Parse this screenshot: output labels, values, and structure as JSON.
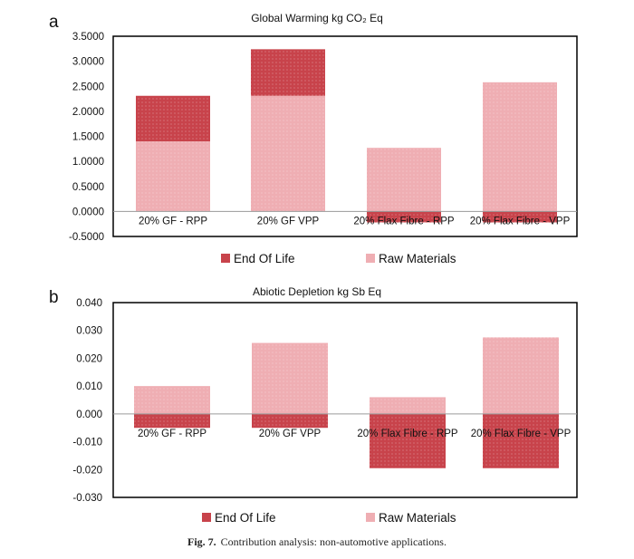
{
  "figure": {
    "caption_label": "Fig. 7.",
    "caption_text": "Contribution analysis: non-automotive applications."
  },
  "colors": {
    "end_of_life": "#c8434b",
    "raw_materials": "#efaeb3"
  },
  "chart_data": [
    {
      "panel": "a",
      "type": "bar",
      "stacked": true,
      "title": "Global Warming  kg CO₂ Eq",
      "categories": [
        "20% GF - RPP",
        "20% GF VPP",
        "20% Flax Fibre - RPP",
        "20% Flax Fibre - VPP"
      ],
      "series": [
        {
          "name": "Raw Materials",
          "values": [
            1.4,
            2.31,
            1.27,
            2.58
          ]
        },
        {
          "name": "End Of Life",
          "values": [
            0.91,
            0.93,
            -0.22,
            -0.22
          ]
        }
      ],
      "yticks": [
        "3.5000",
        "3.0000",
        "2.5000",
        "2.0000",
        "1.5000",
        "1.0000",
        "0.5000",
        "0.0000",
        "-0.5000"
      ],
      "ylim": [
        -0.5,
        3.5
      ],
      "legend": "bottom",
      "grid": false
    },
    {
      "panel": "b",
      "type": "bar",
      "stacked": true,
      "title": "Abiotic Depletion kg Sb Eq",
      "categories": [
        "20% GF - RPP",
        "20% GF VPP",
        "20% Flax Fibre - RPP",
        "20% Flax Fibre - VPP"
      ],
      "series": [
        {
          "name": "Raw Materials",
          "values": [
            0.01,
            0.0255,
            0.006,
            0.0275
          ]
        },
        {
          "name": "End Of Life",
          "values": [
            -0.005,
            -0.005,
            -0.0195,
            -0.0195
          ]
        }
      ],
      "yticks": [
        "0.040",
        "0.030",
        "0.020",
        "0.010",
        "0.000",
        "-0.010",
        "-0.020",
        "-0.030"
      ],
      "ylim": [
        -0.03,
        0.04
      ],
      "legend": "bottom",
      "grid": false
    }
  ]
}
